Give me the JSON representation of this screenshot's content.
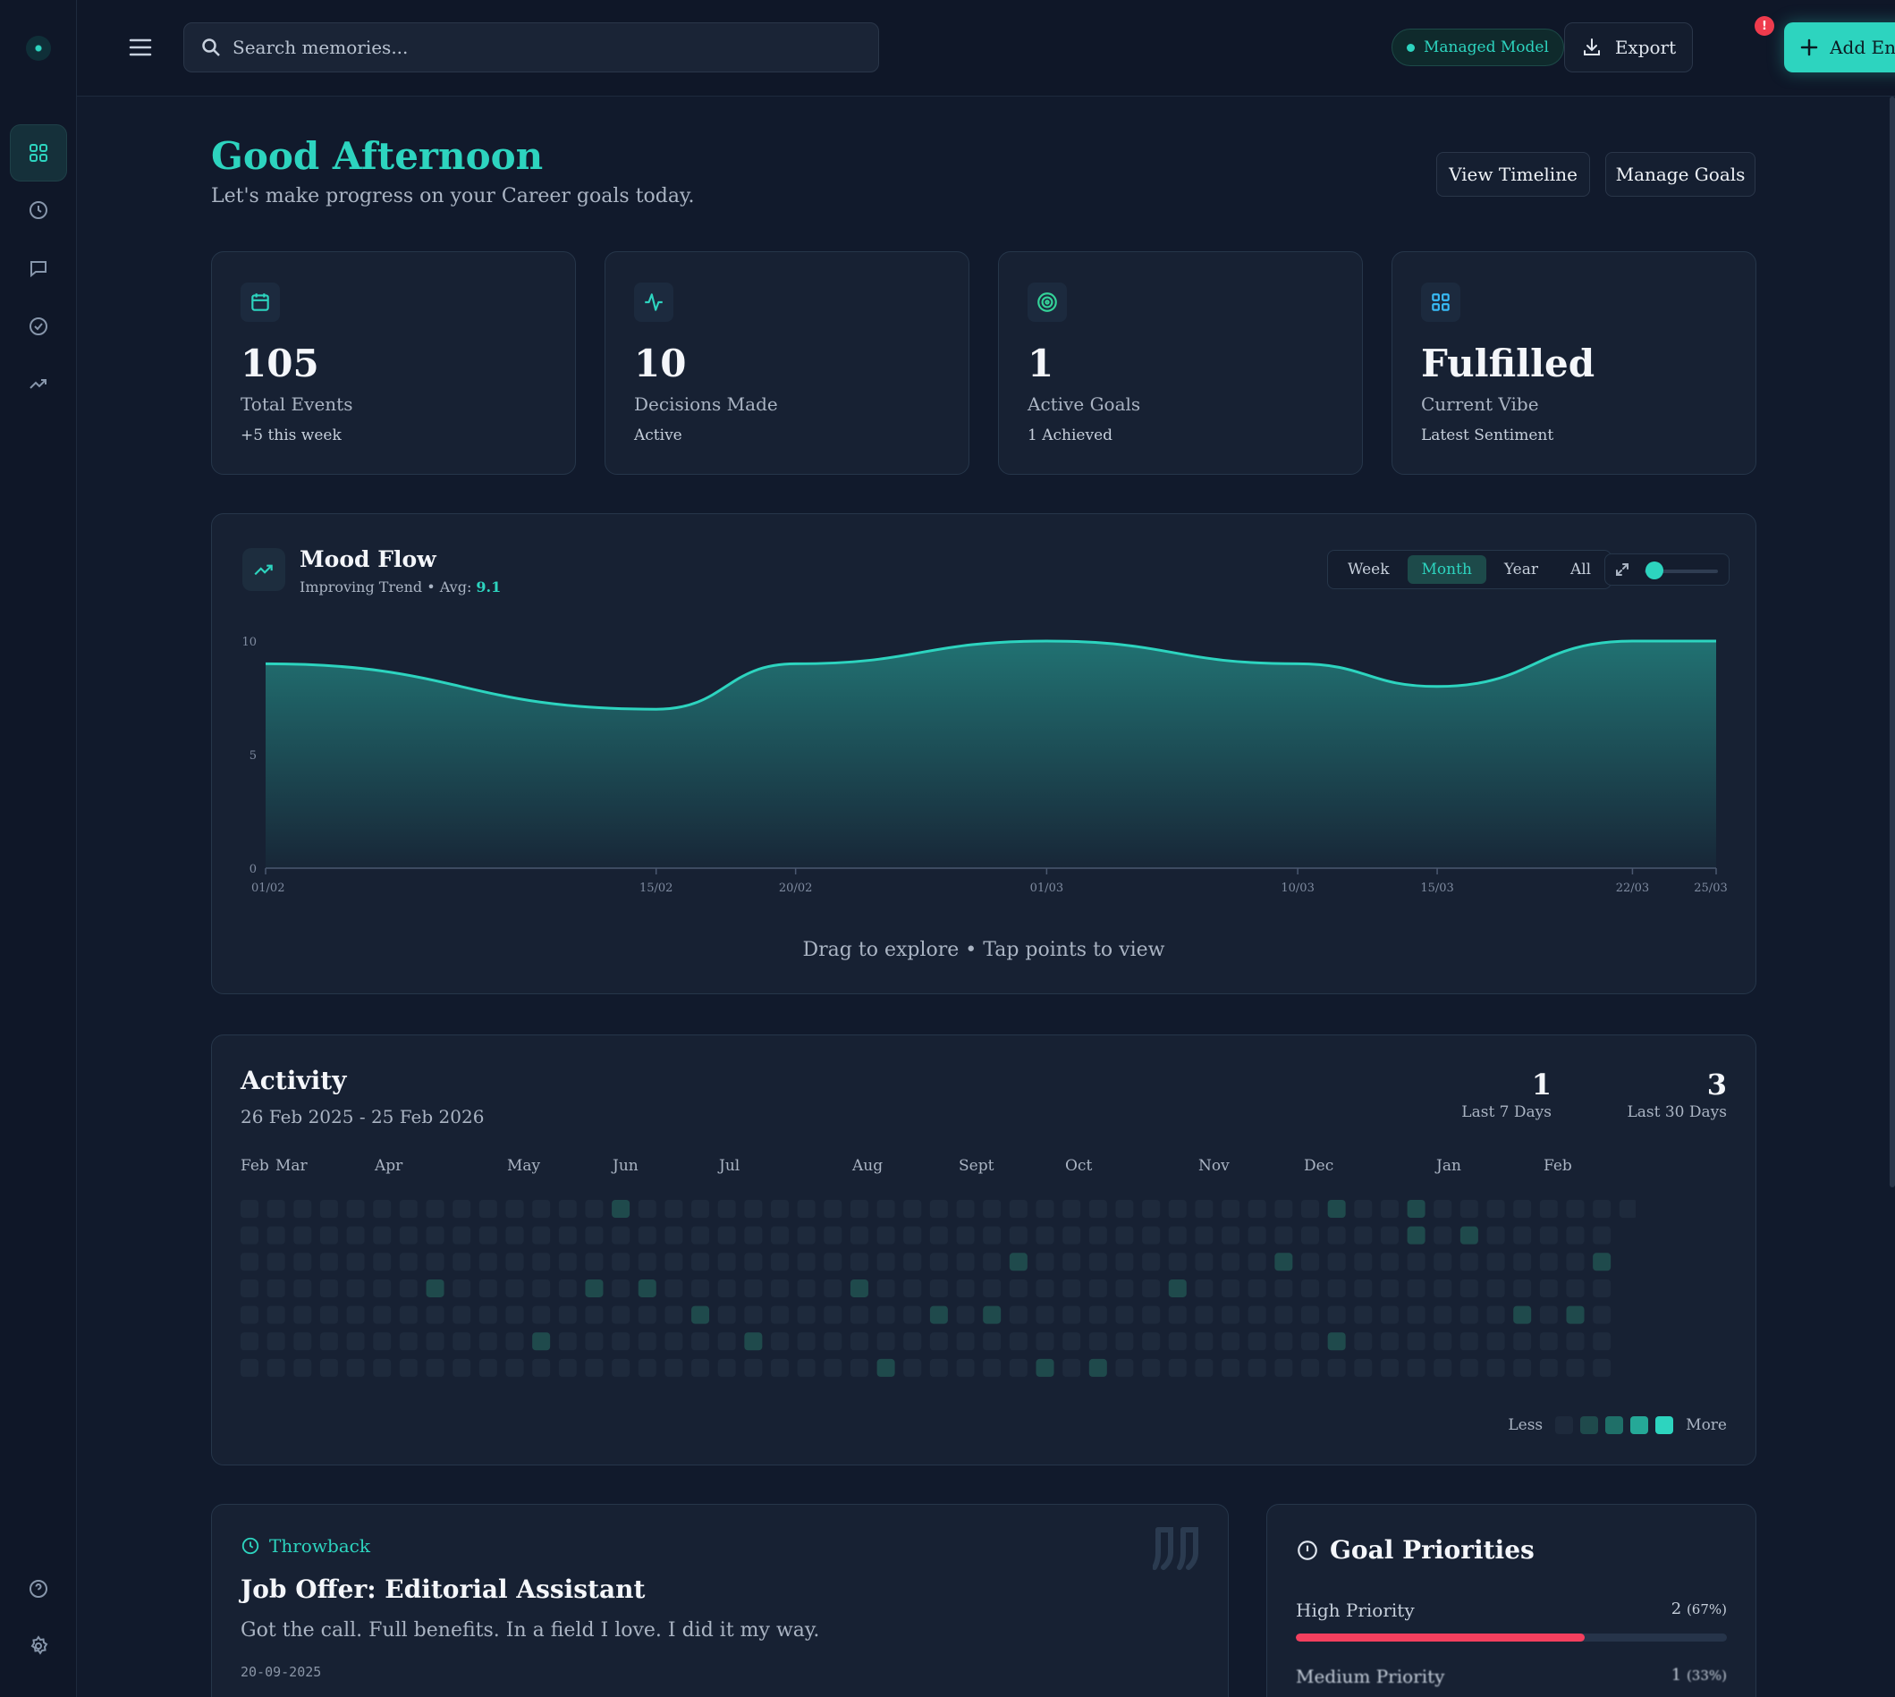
{
  "topbar": {
    "search_placeholder": "Search memories...",
    "managed_model": "Managed Model",
    "export_label": "Export",
    "export_badge": "!",
    "add_entry_label": "Add Entry"
  },
  "greeting": {
    "title": "Good Afternoon",
    "subtitle": "Let's make progress on your Career goals today.",
    "view_timeline": "View Timeline",
    "manage_goals": "Manage Goals"
  },
  "stats": [
    {
      "icon": "calendar-icon",
      "value": "105",
      "label": "Total Events",
      "sub": "+5 this week",
      "color": "#2dd4bf"
    },
    {
      "icon": "activity-icon",
      "value": "10",
      "label": "Decisions Made",
      "sub": "Active",
      "color": "#2dd4bf"
    },
    {
      "icon": "target-icon",
      "value": "1",
      "label": "Active Goals",
      "sub": "1 Achieved",
      "color": "#34d399"
    },
    {
      "icon": "grid-icon",
      "value": "Fulfilled",
      "label": "Current Vibe",
      "sub": "Latest Sentiment",
      "color": "#38bdf8"
    }
  ],
  "mood": {
    "title": "Mood Flow",
    "subtitle": "Improving Trend • Avg:",
    "avg": "9.1",
    "ranges": [
      "Week",
      "Month",
      "Year",
      "All"
    ],
    "active_range": "Month",
    "zoom_level": 0.1,
    "hint": "Drag to explore • Tap points to view"
  },
  "chart_data": {
    "type": "area",
    "x": [
      "01/02",
      "15/02",
      "20/02",
      "01/03",
      "10/03",
      "15/03",
      "22/03",
      "25/03"
    ],
    "values": [
      9,
      7,
      9,
      10,
      9,
      8,
      10,
      10
    ],
    "x_days": [
      1,
      15,
      20,
      29,
      38,
      43,
      50,
      53
    ],
    "yticks": [
      "0",
      "5",
      "10"
    ],
    "ylim": [
      0,
      10
    ],
    "grid": false,
    "color": "#2dd4bf"
  },
  "activity": {
    "title": "Activity",
    "range": "26 Feb 2025 - 25 Feb 2026",
    "stat1_value": "1",
    "stat1_label": "Last 7 Days",
    "stat2_value": "3",
    "stat2_label": "Last 30 Days",
    "months": [
      "Feb",
      "Mar",
      "Apr",
      "May",
      "Jun",
      "Jul",
      "Aug",
      "Sept",
      "Oct",
      "Nov",
      "Dec",
      "Jan",
      "Feb"
    ],
    "legend_less": "Less",
    "legend_more": "More",
    "colors": [
      "#1e2a3c",
      "#1f4a4c",
      "#1f6f68",
      "#25a897",
      "#2dd4bf"
    ],
    "active_cells": [
      [
        14,
        0
      ],
      [
        41,
        0
      ],
      [
        44,
        0
      ],
      [
        44,
        1
      ],
      [
        46,
        1
      ],
      [
        29,
        2
      ],
      [
        39,
        2
      ],
      [
        51,
        2
      ],
      [
        7,
        3
      ],
      [
        13,
        3
      ],
      [
        15,
        3
      ],
      [
        23,
        3
      ],
      [
        35,
        3
      ],
      [
        17,
        4
      ],
      [
        26,
        4
      ],
      [
        28,
        4
      ],
      [
        48,
        4
      ],
      [
        50,
        4
      ],
      [
        11,
        5
      ],
      [
        19,
        5
      ],
      [
        41,
        5
      ],
      [
        24,
        6
      ],
      [
        30,
        6
      ],
      [
        32,
        6
      ]
    ]
  },
  "throwback": {
    "label": "Throwback",
    "title": "Job Offer: Editorial Assistant",
    "text": "Got the call. Full benefits. In a field I love. I did it my way.",
    "date": "20-09-2025"
  },
  "goals": {
    "title": "Goal Priorities",
    "rows": [
      {
        "label": "High Priority",
        "count": "2",
        "pct": "(67%)",
        "fraction": 0.67,
        "color": "#f43f5e"
      },
      {
        "label": "Medium Priority",
        "count": "1",
        "pct": "(33%)",
        "fraction": 0.33,
        "color": "#f59e0b"
      }
    ]
  }
}
